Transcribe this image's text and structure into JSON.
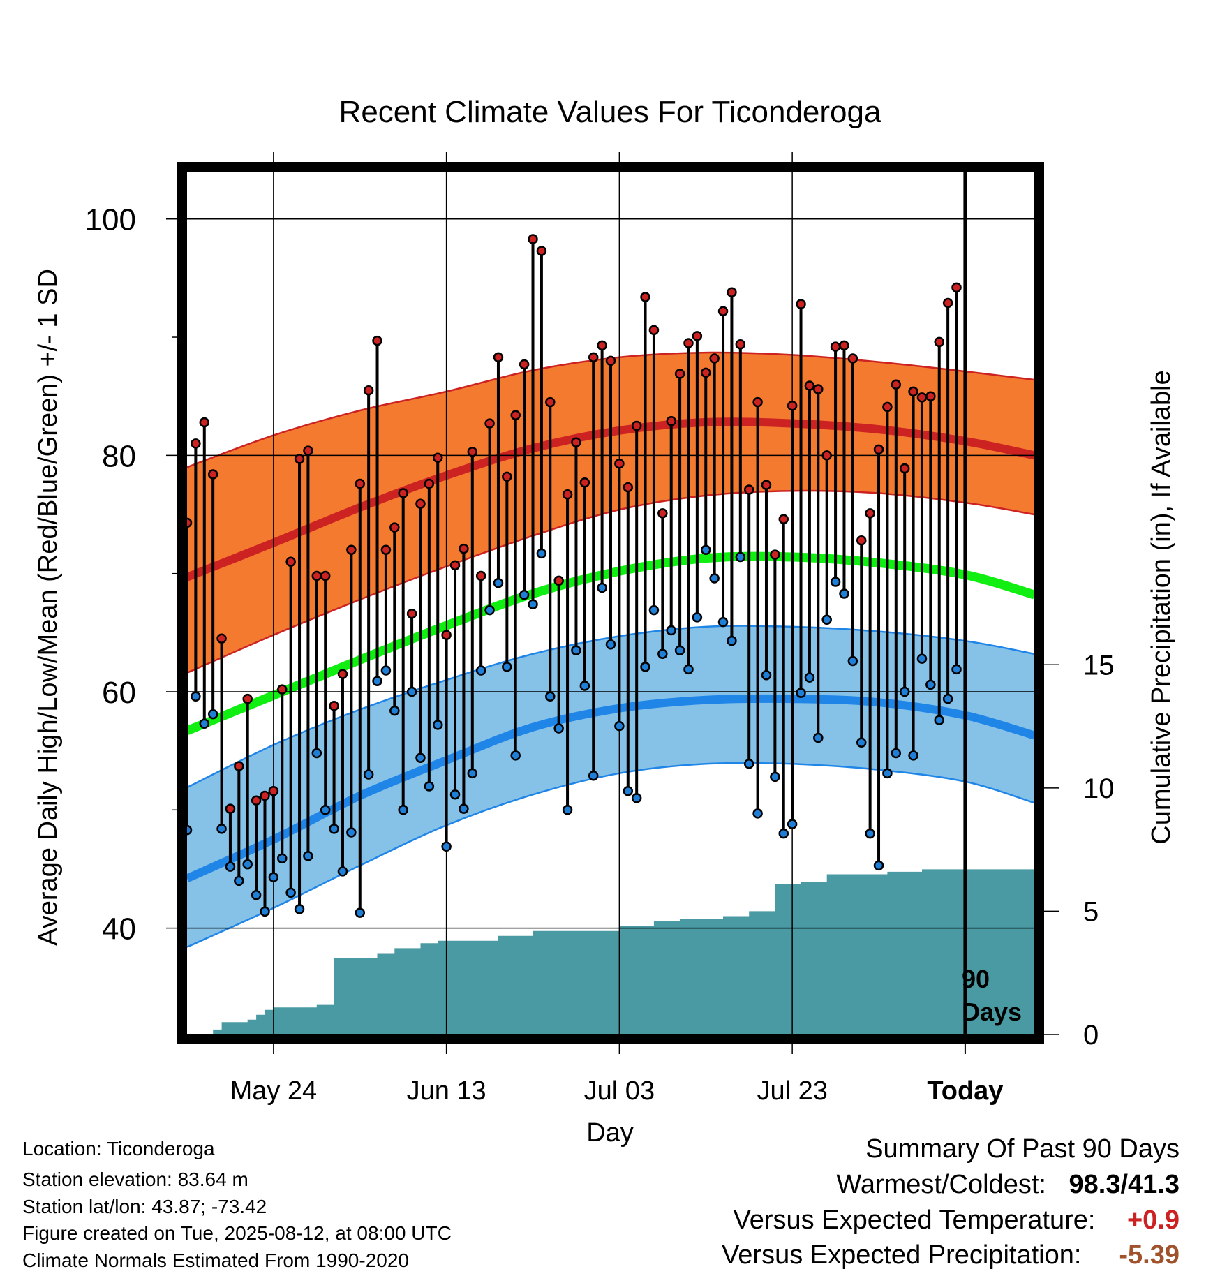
{
  "chart_data": {
    "type": "line",
    "title": "Recent Climate Values For Ticonderoga",
    "xlabel": "Day",
    "ylabel_left": "Average Daily High/Low/Mean (Red/Blue/Green) +/- 1 SD",
    "ylabel_right": "Cumulative Precipitation (in), If Available",
    "x_start": "2025-05-14",
    "x_end": "2025-08-20",
    "today_marker": {
      "date": "2025-08-12",
      "label": "Today",
      "annotation_line1": "90",
      "annotation_line2": "Days"
    },
    "x_ticks": [
      {
        "date": "2025-05-24",
        "label": "May 24"
      },
      {
        "date": "2025-06-13",
        "label": "Jun 13"
      },
      {
        "date": "2025-07-03",
        "label": "Jul 03"
      },
      {
        "date": "2025-07-23",
        "label": "Jul 23"
      },
      {
        "date": "2025-08-12",
        "label": "Today"
      }
    ],
    "y_left": {
      "range": [
        31,
        104
      ],
      "major_ticks": [
        40,
        60,
        80,
        100
      ],
      "minor_ticks": [
        50,
        70,
        90
      ]
    },
    "y_right": {
      "range": [
        0,
        35
      ],
      "ticks": [
        0,
        5,
        10,
        15
      ]
    },
    "grid": true,
    "normals": {
      "dates": [
        "2025-05-14",
        "2025-05-24",
        "2025-06-03",
        "2025-06-13",
        "2025-06-23",
        "2025-07-03",
        "2025-07-13",
        "2025-07-23",
        "2025-08-02",
        "2025-08-12",
        "2025-08-20"
      ],
      "high_mean": [
        69.7,
        72.6,
        75.6,
        78.3,
        80.6,
        82.1,
        82.8,
        82.7,
        82.2,
        81.2,
        80.0
      ],
      "high_upper": [
        79.0,
        81.7,
        83.8,
        85.4,
        87.2,
        88.3,
        88.7,
        88.5,
        87.9,
        87.1,
        86.4
      ],
      "high_lower": [
        61.6,
        64.8,
        67.8,
        70.6,
        73.2,
        75.4,
        76.6,
        77.0,
        76.8,
        76.0,
        75.0
      ],
      "mean": [
        56.7,
        59.7,
        62.7,
        65.6,
        68.3,
        70.2,
        71.3,
        71.4,
        70.9,
        69.9,
        68.2
      ],
      "low_mean": [
        44.2,
        47.5,
        51.2,
        54.2,
        57.0,
        58.6,
        59.3,
        59.4,
        59.1,
        58.0,
        56.3
      ],
      "low_upper": [
        51.9,
        55.5,
        58.5,
        61.0,
        63.2,
        64.7,
        65.5,
        65.5,
        65.1,
        64.3,
        63.2
      ],
      "low_lower": [
        38.4,
        41.7,
        45.3,
        48.7,
        51.3,
        53.1,
        53.9,
        53.9,
        53.4,
        52.4,
        50.6
      ]
    },
    "series": [
      {
        "name": "Daily High",
        "color": "#cc2222",
        "values": [
          74.3,
          81.0,
          82.8,
          78.4,
          64.5,
          50.1,
          53.7,
          59.4,
          50.8,
          51.2,
          51.6,
          60.2,
          71.0,
          79.7,
          80.4,
          69.8,
          69.8,
          58.8,
          61.5,
          72.0,
          77.6,
          85.5,
          89.7,
          72.0,
          73.9,
          76.8,
          66.6,
          75.9,
          77.6,
          79.8,
          64.8,
          70.7,
          72.1,
          80.3,
          69.8,
          82.7,
          88.3,
          78.2,
          83.4,
          87.7,
          98.3,
          97.3,
          84.5,
          69.4,
          76.7,
          81.1,
          77.7,
          88.3,
          89.3,
          88.0,
          79.3,
          77.3,
          82.5,
          93.4,
          90.6,
          75.1,
          82.9,
          86.9,
          89.5,
          90.1,
          87.0,
          88.2,
          92.2,
          93.8,
          89.4,
          77.1,
          84.5,
          77.5,
          71.6,
          74.6,
          84.2,
          92.8,
          85.9,
          85.6,
          80.0,
          89.2,
          89.3,
          88.2,
          72.8,
          75.1,
          80.5,
          84.1,
          86.0,
          78.9,
          85.4,
          84.9,
          85.0,
          89.6,
          92.9,
          94.2
        ]
      },
      {
        "name": "Daily Low",
        "color": "#1f7fd6",
        "values": [
          48.3,
          59.6,
          57.3,
          58.1,
          48.4,
          45.2,
          44.0,
          45.4,
          42.8,
          41.4,
          44.3,
          45.9,
          43.0,
          41.6,
          46.1,
          54.8,
          50.0,
          48.4,
          44.8,
          48.1,
          41.3,
          53.0,
          60.9,
          61.8,
          58.4,
          50.0,
          60.0,
          54.4,
          52.0,
          57.2,
          46.9,
          51.3,
          50.1,
          53.1,
          61.8,
          66.9,
          69.2,
          62.1,
          54.6,
          68.2,
          67.4,
          71.7,
          59.6,
          56.9,
          50.0,
          63.5,
          60.5,
          52.9,
          68.8,
          64.0,
          57.1,
          51.6,
          51.0,
          62.1,
          66.9,
          63.2,
          65.2,
          63.5,
          61.9,
          66.3,
          72.0,
          69.6,
          65.9,
          64.3,
          71.4,
          53.9,
          49.7,
          61.4,
          52.8,
          48.0,
          48.8,
          59.9,
          61.2,
          56.1,
          66.1,
          69.3,
          68.3,
          62.6,
          55.7,
          48.0,
          45.3,
          53.1,
          54.8,
          60.0,
          54.6,
          62.8,
          60.6,
          57.6,
          59.4,
          61.9
        ]
      }
    ],
    "cumulative_precip": {
      "dates": [
        "2025-05-17",
        "2025-05-18",
        "2025-05-21",
        "2025-05-22",
        "2025-05-23",
        "2025-05-24",
        "2025-05-29",
        "2025-05-31",
        "2025-06-05",
        "2025-06-07",
        "2025-06-10",
        "2025-06-12",
        "2025-06-19",
        "2025-06-23",
        "2025-07-03",
        "2025-07-07",
        "2025-07-10",
        "2025-07-15",
        "2025-07-18",
        "2025-07-21",
        "2025-07-24",
        "2025-07-27",
        "2025-08-03",
        "2025-08-07",
        "2025-08-20"
      ],
      "values": [
        0.2,
        0.5,
        0.6,
        0.8,
        1.0,
        1.1,
        1.2,
        3.1,
        3.3,
        3.5,
        3.7,
        3.8,
        4.0,
        4.2,
        4.4,
        4.6,
        4.7,
        4.8,
        5.0,
        6.1,
        6.2,
        6.5,
        6.6,
        6.7,
        6.7
      ]
    }
  },
  "footer": {
    "location": "Location: Ticonderoga",
    "elevation": "Station elevation: 83.64 m",
    "latlon": "Station lat/lon: 43.87; -73.42",
    "created": "Figure created on Tue, 2025-08-12, at 08:00 UTC",
    "normals": "Climate Normals Estimated From 1990-2020"
  },
  "summary": {
    "title": "Summary Of Past 90 Days",
    "warm_label": "Warmest/Coldest:",
    "warm_value": "98.3/41.3",
    "temp_label": "Versus Expected Temperature:",
    "temp_value": "+0.9",
    "temp_color": "#cc2222",
    "precip_label": "Versus Expected Precipitation:",
    "precip_value": "-5.39",
    "precip_color": "#a0522d"
  }
}
